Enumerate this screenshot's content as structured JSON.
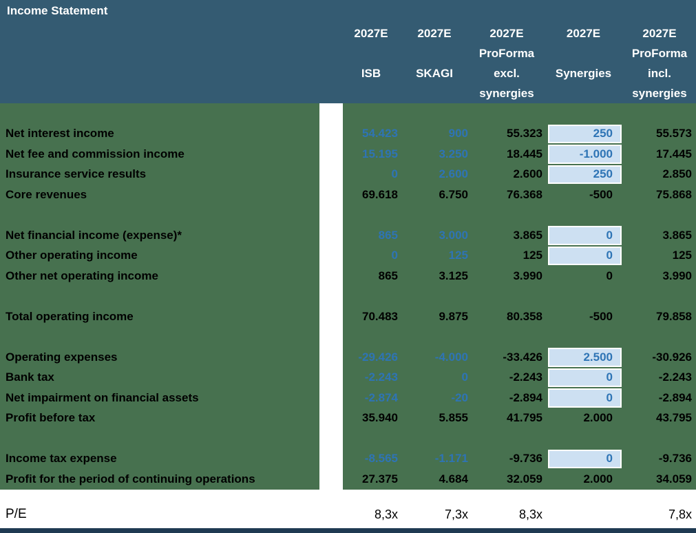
{
  "title": "Income Statement",
  "columns": [
    {
      "lines": [
        "2027E",
        "",
        "ISB",
        ""
      ]
    },
    {
      "lines": [
        "2027E",
        "",
        "SKAGI",
        ""
      ]
    },
    {
      "lines": [
        "2027E",
        "ProForma",
        "excl.",
        "synergies"
      ]
    },
    {
      "lines": [
        "2027E",
        "",
        "Synergies",
        ""
      ]
    },
    {
      "lines": [
        "2027E",
        "ProForma",
        "incl.",
        "synergies"
      ]
    }
  ],
  "rows": [
    {
      "type": "blank",
      "label": "",
      "values": [
        "",
        "",
        "",
        "",
        ""
      ]
    },
    {
      "type": "data",
      "label": "Net interest income",
      "values": [
        "54.423",
        "900",
        "55.323",
        "250",
        "55.573"
      ],
      "synergy_cell": true
    },
    {
      "type": "data",
      "label": "Net fee and commission income",
      "values": [
        "15.195",
        "3.250",
        "18.445",
        "-1.000",
        "17.445"
      ],
      "synergy_cell": true
    },
    {
      "type": "data",
      "label": "Insurance service results",
      "values": [
        "0",
        "2.600",
        "2.600",
        "250",
        "2.850"
      ],
      "synergy_cell": true
    },
    {
      "type": "total",
      "label": "Core revenues",
      "values": [
        "69.618",
        "6.750",
        "76.368",
        "-500",
        "75.868"
      ]
    },
    {
      "type": "blank",
      "label": "",
      "values": [
        "",
        "",
        "",
        "",
        ""
      ]
    },
    {
      "type": "data",
      "label": "Net financial income (expense)*",
      "values": [
        "865",
        "3.000",
        "3.865",
        "0",
        "3.865"
      ],
      "synergy_cell": true
    },
    {
      "type": "data",
      "label": "Other operating income",
      "values": [
        "0",
        "125",
        "125",
        "0",
        "125"
      ],
      "synergy_cell": true
    },
    {
      "type": "total",
      "label": "Other net operating income",
      "values": [
        "865",
        "3.125",
        "3.990",
        "0",
        "3.990"
      ]
    },
    {
      "type": "blank",
      "label": "",
      "values": [
        "",
        "",
        "",
        "",
        ""
      ]
    },
    {
      "type": "total",
      "label": "Total operating income",
      "values": [
        "70.483",
        "9.875",
        "80.358",
        "-500",
        "79.858"
      ]
    },
    {
      "type": "blank",
      "label": "",
      "values": [
        "",
        "",
        "",
        "",
        ""
      ]
    },
    {
      "type": "data",
      "label": "Operating expenses",
      "values": [
        "-29.426",
        "-4.000",
        "-33.426",
        "2.500",
        "-30.926"
      ],
      "synergy_cell": true
    },
    {
      "type": "data",
      "label": "Bank tax",
      "values": [
        "-2.243",
        "0",
        "-2.243",
        "0",
        "-2.243"
      ],
      "synergy_cell": true
    },
    {
      "type": "data",
      "label": "Net impairment on financial assets",
      "values": [
        "-2.874",
        "-20",
        "-2.894",
        "0",
        "-2.894"
      ],
      "synergy_cell": true
    },
    {
      "type": "total",
      "label": "Profit before tax",
      "values": [
        "35.940",
        "5.855",
        "41.795",
        "2.000",
        "43.795"
      ]
    },
    {
      "type": "blank",
      "label": "",
      "values": [
        "",
        "",
        "",
        "",
        ""
      ]
    },
    {
      "type": "data",
      "label": "Income tax expense",
      "values": [
        "-8.565",
        "-1.171",
        "-9.736",
        "0",
        "-9.736"
      ],
      "synergy_cell": true
    },
    {
      "type": "total",
      "label": "Profit for the period of continuing operations",
      "values": [
        "27.375",
        "4.684",
        "32.059",
        "2.000",
        "34.059"
      ]
    }
  ],
  "pe_row": {
    "label": "P/E",
    "values": [
      "8,3x",
      "7,3x",
      "8,3x",
      "",
      "7,8x"
    ]
  },
  "colors": {
    "header_bg": "#345B72",
    "body_bg": "#47714F",
    "divider_strip": "#FFFFFF",
    "synergy_cell_bg": "#CDE0F2",
    "synergy_cell_border": "#FFFFFF",
    "value_blue": "#2E74B5",
    "text_dark": "#000000",
    "header_text": "#FFFFFF",
    "bottom_bar": "#1F3A52"
  }
}
